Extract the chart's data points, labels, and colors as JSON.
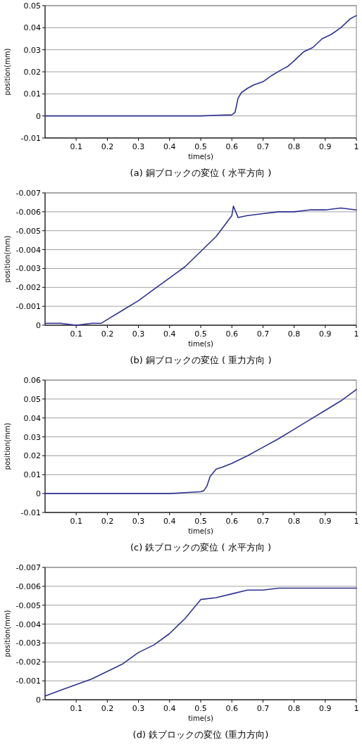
{
  "chart_data": [
    {
      "type": "line",
      "title": "(a) 銅ブロックの変位 ( 水平方向 )",
      "xlabel": "time(s)",
      "ylabel": "position(mm)",
      "grid": "y",
      "xlim": [
        0,
        1
      ],
      "ylim": [
        -0.01,
        0.05
      ],
      "xticks": [
        0.1,
        0.2,
        0.3,
        0.4,
        0.5,
        0.6,
        0.7,
        0.8,
        0.9,
        1
      ],
      "yticks": [
        -0.01,
        0,
        0.01,
        0.02,
        0.03,
        0.04,
        0.05
      ],
      "x": [
        0,
        0.05,
        0.1,
        0.15,
        0.2,
        0.25,
        0.3,
        0.35,
        0.4,
        0.45,
        0.5,
        0.55,
        0.6,
        0.61,
        0.62,
        0.63,
        0.65,
        0.67,
        0.7,
        0.73,
        0.76,
        0.78,
        0.8,
        0.83,
        0.86,
        0.89,
        0.92,
        0.95,
        0.98,
        1
      ],
      "series": [
        {
          "color": "#2e3192",
          "values": [
            0,
            0,
            0,
            0,
            0,
            0,
            0,
            0,
            0,
            0,
            0,
            0.0003,
            0.0005,
            0.0015,
            0.008,
            0.0105,
            0.0125,
            0.014,
            0.0155,
            0.0185,
            0.021,
            0.0225,
            0.025,
            0.029,
            0.031,
            0.035,
            0.037,
            0.04,
            0.044,
            0.0455
          ]
        }
      ]
    },
    {
      "type": "line",
      "title": "(b) 銅ブロックの変位 ( 重力方向 )",
      "xlabel": "time(s)",
      "ylabel": "position(mm)",
      "grid": "y",
      "xlim": [
        0,
        1
      ],
      "ylim": [
        0,
        -0.007
      ],
      "xticks": [
        0.1,
        0.2,
        0.3,
        0.4,
        0.5,
        0.6,
        0.7,
        0.8,
        0.9,
        1
      ],
      "yticks": [
        0,
        -0.001,
        -0.002,
        -0.003,
        -0.004,
        -0.005,
        -0.006,
        -0.007
      ],
      "x": [
        0,
        0.05,
        0.1,
        0.15,
        0.18,
        0.2,
        0.25,
        0.3,
        0.35,
        0.4,
        0.45,
        0.5,
        0.55,
        0.6,
        0.605,
        0.62,
        0.65,
        0.7,
        0.75,
        0.8,
        0.85,
        0.9,
        0.95,
        1
      ],
      "series": [
        {
          "color": "#2e3192",
          "values": [
            -0.0001,
            -0.0001,
            0,
            -0.0001,
            -0.0001,
            -0.0003,
            -0.0008,
            -0.0013,
            -0.0019,
            -0.0025,
            -0.0031,
            -0.0039,
            -0.0047,
            -0.0058,
            -0.0063,
            -0.0057,
            -0.0058,
            -0.0059,
            -0.006,
            -0.006,
            -0.0061,
            -0.0061,
            -0.0062,
            -0.0061
          ]
        }
      ]
    },
    {
      "type": "line",
      "title": "(c) 鉄ブロックの変位 ( 水平方向 )",
      "xlabel": "time(s)",
      "ylabel": "position(mm)",
      "grid": "y",
      "xlim": [
        0,
        1
      ],
      "ylim": [
        -0.01,
        0.06
      ],
      "xticks": [
        0.1,
        0.2,
        0.3,
        0.4,
        0.5,
        0.6,
        0.7,
        0.8,
        0.9,
        1
      ],
      "yticks": [
        -0.01,
        0,
        0.01,
        0.02,
        0.03,
        0.04,
        0.05,
        0.06
      ],
      "x": [
        0,
        0.05,
        0.1,
        0.15,
        0.2,
        0.25,
        0.3,
        0.35,
        0.4,
        0.45,
        0.5,
        0.51,
        0.52,
        0.53,
        0.55,
        0.57,
        0.6,
        0.65,
        0.7,
        0.75,
        0.8,
        0.85,
        0.9,
        0.95,
        1
      ],
      "series": [
        {
          "color": "#2e3192",
          "values": [
            0,
            0,
            0,
            0,
            0,
            0,
            0,
            0,
            0,
            0.0005,
            0.001,
            0.0015,
            0.004,
            0.009,
            0.013,
            0.014,
            0.016,
            0.02,
            0.0245,
            0.029,
            0.034,
            0.039,
            0.044,
            0.049,
            0.055
          ]
        }
      ]
    },
    {
      "type": "line",
      "title": "(d) 鉄ブロックの変位 (重力方向)",
      "xlabel": "time(s)",
      "ylabel": "position(mm)",
      "grid": "y",
      "xlim": [
        0,
        1
      ],
      "ylim": [
        0,
        -0.007
      ],
      "xticks": [
        0.1,
        0.2,
        0.3,
        0.4,
        0.5,
        0.6,
        0.7,
        0.8,
        0.9,
        1
      ],
      "yticks": [
        0,
        -0.001,
        -0.002,
        -0.003,
        -0.004,
        -0.005,
        -0.006,
        -0.007
      ],
      "x": [
        0,
        0.05,
        0.1,
        0.15,
        0.2,
        0.25,
        0.3,
        0.35,
        0.4,
        0.45,
        0.48,
        0.5,
        0.55,
        0.6,
        0.65,
        0.7,
        0.75,
        0.8,
        0.85,
        0.9,
        0.95,
        1
      ],
      "series": [
        {
          "color": "#2e3192",
          "values": [
            -0.0002,
            -0.0005,
            -0.0008,
            -0.0011,
            -0.0015,
            -0.0019,
            -0.0025,
            -0.0029,
            -0.0035,
            -0.0043,
            -0.0049,
            -0.0053,
            -0.0054,
            -0.0056,
            -0.0058,
            -0.0058,
            -0.0059,
            -0.0059,
            -0.0059,
            -0.0059,
            -0.0059,
            -0.0059
          ]
        }
      ]
    }
  ]
}
